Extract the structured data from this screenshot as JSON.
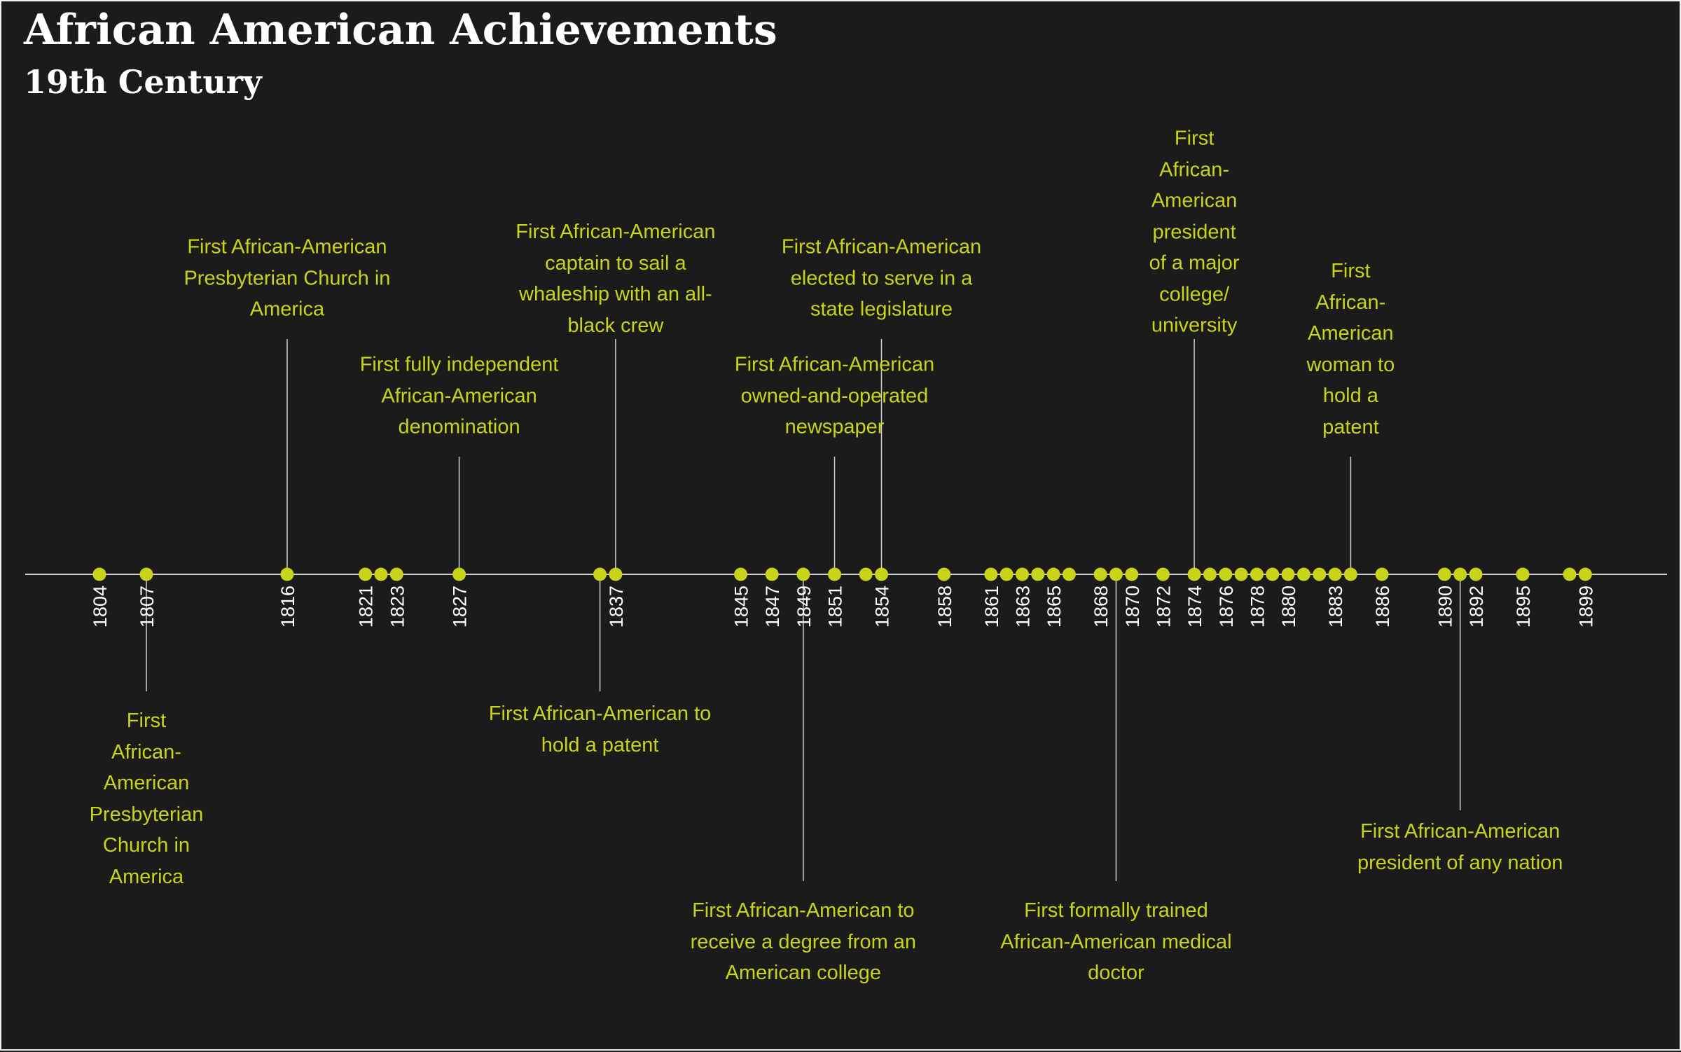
{
  "title": "African American Achievements",
  "subtitle": "19th Century",
  "colors": {
    "background": "#1b1b1b",
    "marker": "#c8d419",
    "axis": "#cfcfcf",
    "tick_text": "#ffffff",
    "annotation_text": "#c8d419"
  },
  "chart_data": {
    "type": "scatter",
    "title": "African American Achievements",
    "subtitle": "19th Century",
    "xlim": [
      1799,
      1904
    ],
    "x_tick_labels": [
      "1804",
      "1807",
      "1816",
      "1821",
      "1823",
      "1827",
      "1837",
      "1845",
      "1847",
      "1849",
      "1851",
      "1854",
      "1858",
      "1861",
      "1863",
      "1865",
      "1868",
      "1870",
      "1872",
      "1874",
      "1876",
      "1878",
      "1880",
      "1883",
      "1886",
      "1890",
      "1892",
      "1895",
      "1899"
    ],
    "points": [
      1804,
      1807,
      1816,
      1821,
      1822,
      1823,
      1827,
      1836,
      1837,
      1845,
      1847,
      1849,
      1851,
      1853,
      1854,
      1858,
      1861,
      1862,
      1863,
      1864,
      1865,
      1866,
      1868,
      1869,
      1870,
      1872,
      1874,
      1875,
      1876,
      1877,
      1878,
      1879,
      1880,
      1881,
      1882,
      1883,
      1884,
      1886,
      1890,
      1891,
      1892,
      1895,
      1898,
      1899
    ],
    "annotations": [
      {
        "year": 1807,
        "text": "First African-American Presbyterian Church in America",
        "side": "below",
        "lines": [
          "First",
          "African-",
          "American",
          "Presbyterian",
          "Church in",
          "America"
        ]
      },
      {
        "year": 1816,
        "text": "First African-American Presbyterian Church in America",
        "side": "above",
        "lines": [
          "First African-American",
          "Presbyterian Church in",
          "America"
        ]
      },
      {
        "year": 1827,
        "text": "First fully independent African-American denomination",
        "side": "above",
        "lines": [
          "First fully independent",
          "African-American",
          "denomination"
        ]
      },
      {
        "year": 1836,
        "text": "First African-American to hold a patent",
        "side": "below",
        "lines": [
          "First African-American to",
          "hold a patent"
        ]
      },
      {
        "year": 1837,
        "text": "First African-American captain to sail a whaleship with an all-black crew",
        "side": "above",
        "lines": [
          "First African-American",
          "captain to sail a",
          "whaleship with an all-",
          "black crew"
        ]
      },
      {
        "year": 1849,
        "text": "First African-American to receive a degree from an American college",
        "side": "below",
        "lines": [
          "First African-American to",
          "receive a degree from an",
          "American college"
        ]
      },
      {
        "year": 1851,
        "text": "First African-American owned-and-operated newspaper",
        "side": "above",
        "lines": [
          "First African-American",
          "owned-and-operated",
          "newspaper"
        ]
      },
      {
        "year": 1854,
        "text": "First African-American elected to serve in a state legislature",
        "side": "above",
        "lines": [
          "First African-American",
          "elected to serve in a",
          "state legislature"
        ]
      },
      {
        "year": 1869,
        "text": "First formally trained African-American medical doctor",
        "side": "below",
        "lines": [
          "First formally trained",
          "African-American medical",
          "doctor"
        ]
      },
      {
        "year": 1874,
        "text": "First African-American president of a major college/ university",
        "side": "above",
        "lines": [
          "First",
          "African-",
          "American",
          "president",
          "of a major",
          "college/",
          "university"
        ]
      },
      {
        "year": 1884,
        "text": "First African-American woman to hold a patent",
        "side": "above",
        "lines": [
          "First",
          "African-",
          "American",
          "woman to",
          "hold a",
          "patent"
        ]
      },
      {
        "year": 1891,
        "text": "First African-American president of any nation",
        "side": "below",
        "lines": [
          "First African-American",
          "president of any nation"
        ]
      }
    ]
  }
}
